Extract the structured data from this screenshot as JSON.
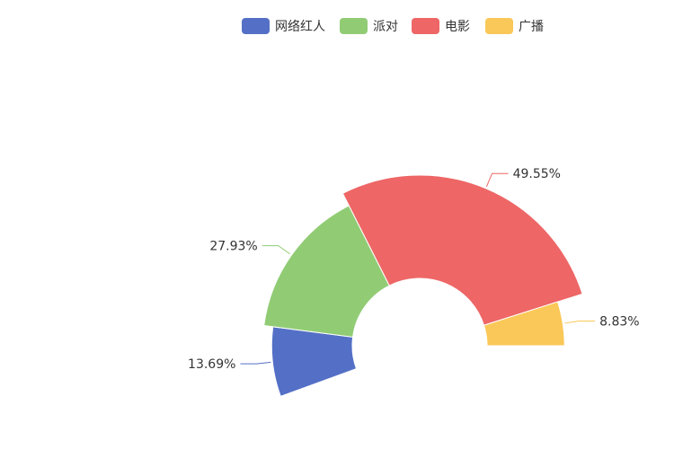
{
  "chart_data": {
    "type": "pie",
    "variant": "rose",
    "title": "",
    "legend": {
      "placement": "top-center",
      "items": [
        "网络红人",
        "派对",
        "电影",
        "广播"
      ]
    },
    "series": [
      {
        "slices": [
          {
            "name": "网络红人",
            "value": 13.69,
            "label": "13.69%",
            "color": "#5470c6"
          },
          {
            "name": "派对",
            "value": 27.93,
            "label": "27.93%",
            "color": "#91cc75"
          },
          {
            "name": "电影",
            "value": 49.55,
            "label": "49.55%",
            "color": "#ee6666"
          },
          {
            "name": "广播",
            "value": 8.83,
            "label": "8.83%",
            "color": "#fac858"
          }
        ]
      }
    ]
  }
}
